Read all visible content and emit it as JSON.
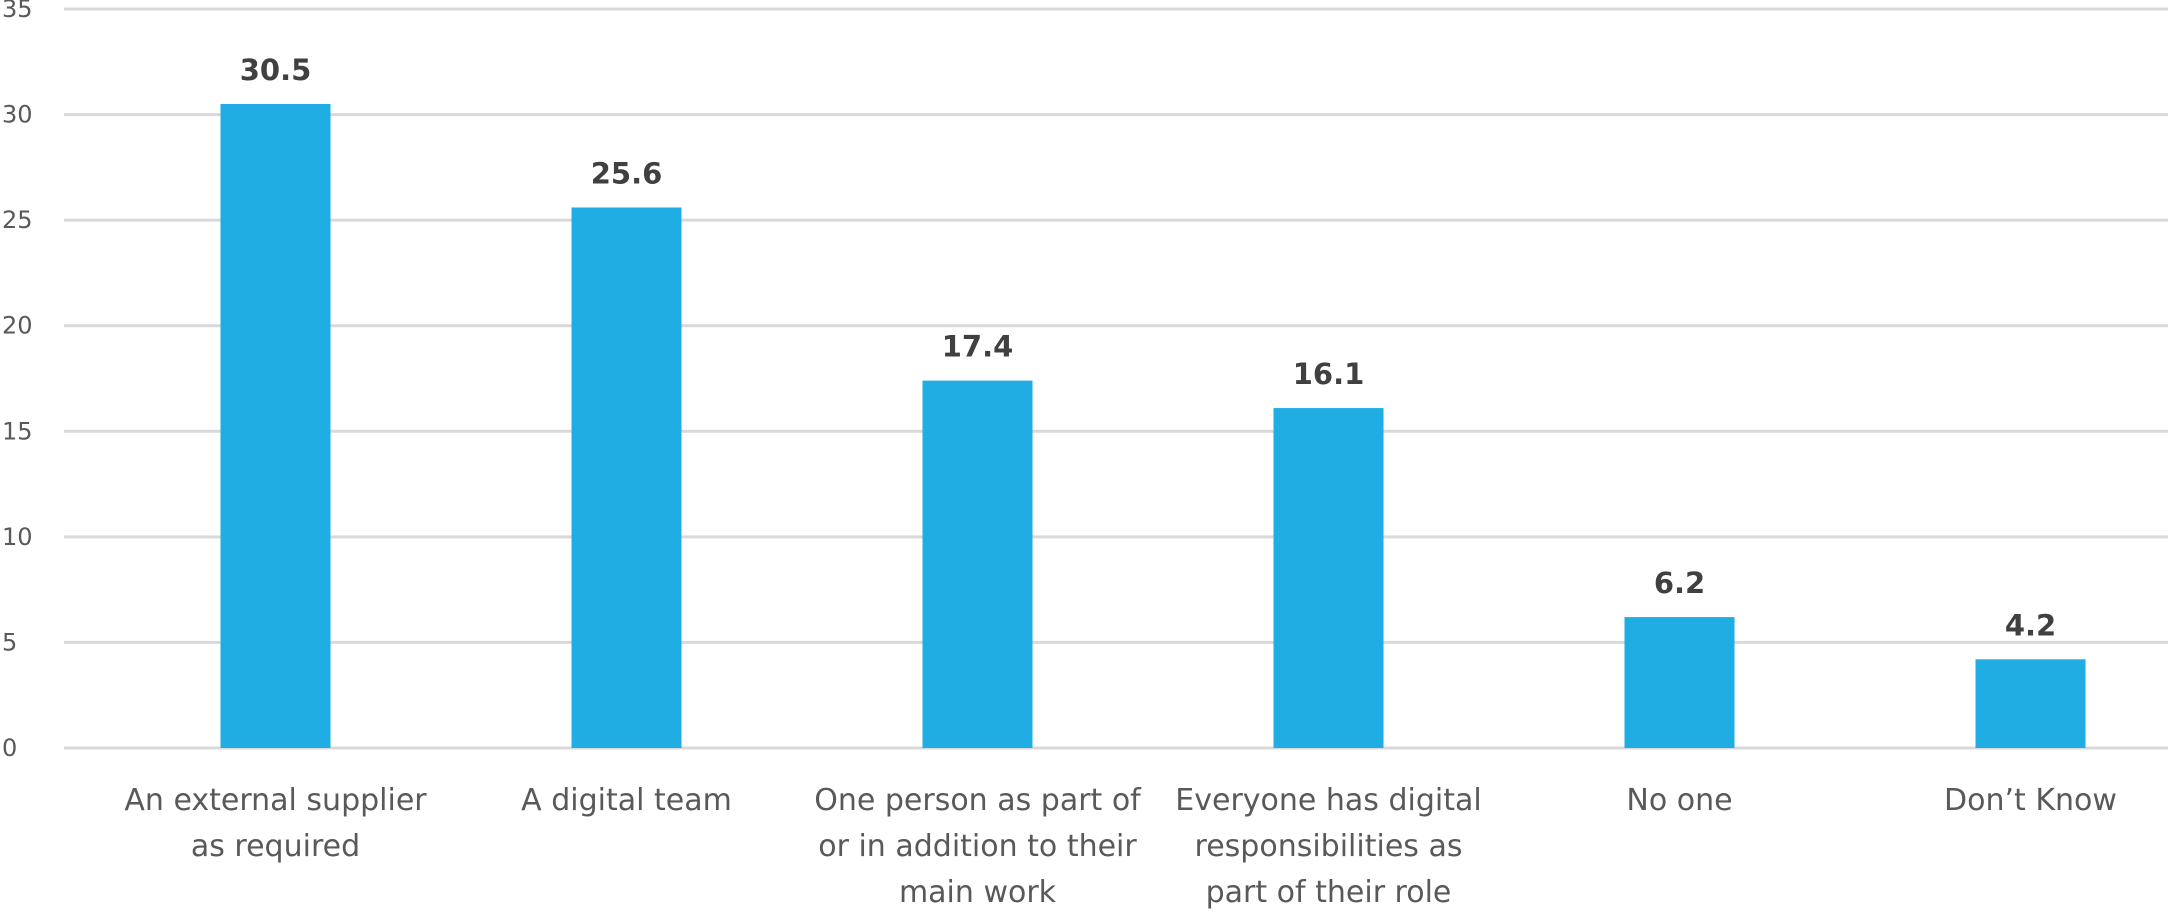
{
  "chart_data": {
    "type": "bar",
    "categories": [
      "An external supplier as required",
      "A digital team",
      "One person as part of or in addition to their main work",
      "Everyone has digital responsibilities as part of their role",
      "No one",
      "Don’t Know"
    ],
    "values": [
      30.5,
      25.6,
      17.4,
      16.1,
      6.2,
      4.2
    ],
    "value_labels": [
      "30.5",
      "25.6",
      "17.4",
      "16.1",
      "6.2",
      "4.2"
    ],
    "yticks": [
      "0",
      "5",
      "10",
      "15",
      "20",
      "25",
      "30",
      "35"
    ],
    "ylim": [
      0,
      35
    ],
    "grid": true,
    "bar_color": "#1FADE4",
    "title": "",
    "xlabel": "",
    "ylabel": ""
  }
}
